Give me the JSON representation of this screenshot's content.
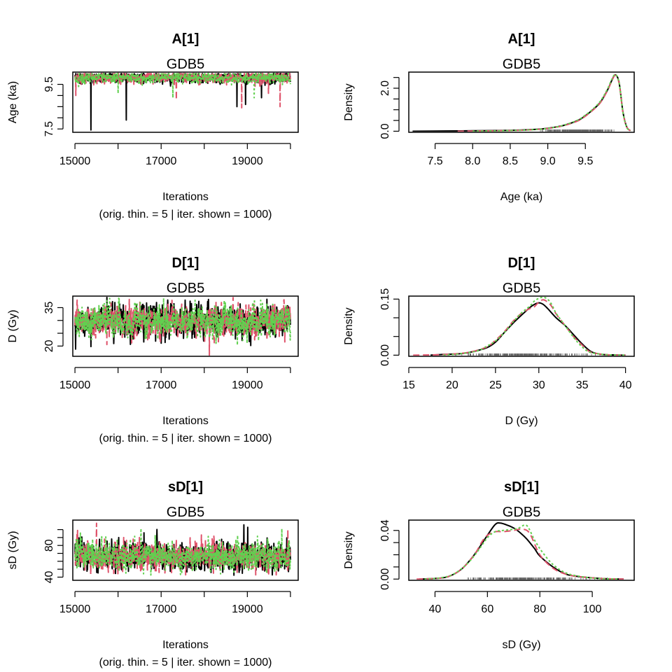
{
  "layout": {
    "rows": 3,
    "cols": 2
  },
  "colors": {
    "chain1": "#000000",
    "chain2": "#DF536B",
    "chain3": "#61D04F"
  },
  "chart_data": [
    {
      "type": "line",
      "kind": "trace",
      "title": "A[1]",
      "subtitle": "GDB5",
      "xlabel": "Iterations",
      "xlabel2": "(orig. thin. = 5 | iter. shown = 1000)",
      "ylabel": "Age (ka)",
      "xlim": [
        14950,
        20180
      ],
      "ylim": [
        7.35,
        10.05
      ],
      "x_ticks": [
        15000,
        16000,
        17000,
        18000,
        19000,
        20000
      ],
      "x_tick_labels": [
        "15000",
        "",
        "17000",
        "",
        "19000",
        ""
      ],
      "y_ticks": [
        7.5,
        8.0,
        8.5,
        9.0,
        9.5
      ],
      "y_tick_labels": [
        "7.5",
        "",
        "",
        "",
        "9.5"
      ],
      "trace": {
        "center": 9.8,
        "spread": 0.12,
        "upper_bound": 9.99,
        "band_low": 9.3
      },
      "series": [
        {
          "name": "chain 1",
          "x_range": [
            15000,
            20000
          ],
          "spikes": [
            [
              15370,
              7.45
            ],
            [
              16190,
              7.9
            ],
            [
              18760,
              8.5
            ],
            [
              18960,
              8.6
            ],
            [
              19330,
              8.9
            ]
          ]
        },
        {
          "name": "chain 2",
          "x_range": [
            15000,
            20000
          ],
          "spikes": [
            [
              15020,
              9.0
            ],
            [
              17350,
              8.8
            ],
            [
              18870,
              8.45
            ],
            [
              19490,
              9.1
            ],
            [
              19760,
              8.5
            ]
          ]
        },
        {
          "name": "chain 3",
          "x_range": [
            15000,
            20000
          ],
          "spikes": [
            [
              16000,
              9.1
            ],
            [
              17270,
              8.9
            ],
            [
              19160,
              8.9
            ]
          ]
        }
      ]
    },
    {
      "type": "line",
      "kind": "density",
      "title": "A[1]",
      "subtitle": "GDB5",
      "xlabel": "Age (ka)",
      "ylabel": "Density",
      "xlim": [
        7.15,
        10.15
      ],
      "ylim": [
        -0.05,
        2.75
      ],
      "x_ticks": [
        7.5,
        8.0,
        8.5,
        9.0,
        9.5
      ],
      "x_tick_labels": [
        "7.5",
        "8.0",
        "8.5",
        "9.0",
        "9.5"
      ],
      "y_ticks": [
        0.0,
        0.5,
        1.0,
        1.5,
        2.0,
        2.5
      ],
      "y_tick_labels": [
        "0.0",
        "",
        "",
        "",
        "2.0",
        ""
      ],
      "rug_range": [
        8.8,
        9.99
      ],
      "series": [
        {
          "name": "chain 1",
          "x": [
            7.2,
            7.5,
            8.0,
            8.5,
            8.8,
            9.0,
            9.2,
            9.4,
            9.5,
            9.6,
            9.7,
            9.8,
            9.85,
            9.9,
            9.95,
            10.0,
            10.05,
            10.1
          ],
          "y": [
            0.0,
            0.01,
            0.02,
            0.04,
            0.08,
            0.14,
            0.26,
            0.5,
            0.72,
            1.0,
            1.35,
            1.95,
            2.35,
            2.62,
            2.25,
            0.9,
            0.2,
            0.02
          ]
        },
        {
          "name": "chain 2",
          "x": [
            7.8,
            8.0,
            8.5,
            8.8,
            9.0,
            9.2,
            9.4,
            9.5,
            9.6,
            9.7,
            9.8,
            9.85,
            9.9,
            9.95,
            10.0,
            10.05,
            10.1
          ],
          "y": [
            0.0,
            0.01,
            0.03,
            0.07,
            0.13,
            0.25,
            0.48,
            0.7,
            0.98,
            1.33,
            1.93,
            2.33,
            2.6,
            2.22,
            0.88,
            0.2,
            0.02
          ]
        },
        {
          "name": "chain 3",
          "x": [
            8.0,
            8.5,
            8.8,
            9.0,
            9.2,
            9.4,
            9.5,
            9.6,
            9.7,
            9.8,
            9.85,
            9.9,
            9.95,
            10.0,
            10.05,
            10.1
          ],
          "y": [
            0.0,
            0.03,
            0.07,
            0.13,
            0.27,
            0.52,
            0.75,
            1.03,
            1.4,
            2.0,
            2.4,
            2.64,
            2.24,
            0.88,
            0.18,
            0.02
          ]
        }
      ]
    },
    {
      "type": "line",
      "kind": "trace",
      "title": "D[1]",
      "subtitle": "GDB5",
      "xlabel": "Iterations",
      "xlabel2": "(orig. thin. = 5 | iter. shown = 1000)",
      "ylabel": "D (Gy)",
      "xlim": [
        14950,
        20180
      ],
      "ylim": [
        16,
        39.5
      ],
      "x_ticks": [
        15000,
        16000,
        17000,
        18000,
        19000,
        20000
      ],
      "x_tick_labels": [
        "15000",
        "",
        "17000",
        "",
        "19000",
        ""
      ],
      "y_ticks": [
        20,
        25,
        30,
        35
      ],
      "y_tick_labels": [
        "20",
        "",
        "",
        "35"
      ],
      "trace": {
        "center": 29.8,
        "spread": 2.8,
        "upper_bound": 39,
        "band_low": 17
      },
      "series": [
        {
          "name": "chain 1",
          "x_range": [
            15000,
            20000
          ],
          "spikes": [
            [
              15370,
              19.8
            ],
            [
              18100,
              38.2
            ]
          ]
        },
        {
          "name": "chain 2",
          "x_range": [
            15000,
            20000
          ],
          "spikes": [
            [
              18120,
              16.2
            ],
            [
              18400,
              37.0
            ]
          ]
        },
        {
          "name": "chain 3",
          "x_range": [
            15000,
            20000
          ],
          "spikes": [
            [
              16400,
              36.5
            ]
          ]
        }
      ]
    },
    {
      "type": "line",
      "kind": "density",
      "title": "D[1]",
      "subtitle": "GDB5",
      "xlabel": "D (Gy)",
      "ylabel": "Density",
      "xlim": [
        15,
        41
      ],
      "ylim": [
        -0.003,
        0.158
      ],
      "x_ticks": [
        15,
        20,
        25,
        30,
        35,
        40
      ],
      "x_tick_labels": [
        "15",
        "20",
        "25",
        "30",
        "35",
        "40"
      ],
      "y_ticks": [
        0.0,
        0.05,
        0.1,
        0.15
      ],
      "y_tick_labels": [
        "0.00",
        "",
        "",
        "0.15"
      ],
      "rug_range": [
        17,
        39
      ],
      "series": [
        {
          "name": "chain 1",
          "x": [
            17.5,
            19,
            21,
            22.5,
            24,
            25,
            26,
            27,
            28,
            29,
            29.5,
            30,
            30.5,
            31,
            32,
            33,
            34,
            35,
            36,
            37,
            38,
            40
          ],
          "y": [
            0.0,
            0.002,
            0.004,
            0.01,
            0.02,
            0.035,
            0.06,
            0.085,
            0.107,
            0.128,
            0.136,
            0.14,
            0.136,
            0.125,
            0.1,
            0.08,
            0.055,
            0.03,
            0.01,
            0.003,
            0.001,
            0.0
          ]
        },
        {
          "name": "chain 2",
          "x": [
            15.5,
            18,
            20,
            22,
            24,
            25,
            26,
            27,
            28,
            29,
            29.5,
            30,
            30.5,
            31,
            31.5,
            32,
            33,
            34,
            35,
            36,
            38,
            40
          ],
          "y": [
            0.0,
            0.001,
            0.003,
            0.008,
            0.022,
            0.04,
            0.062,
            0.09,
            0.112,
            0.125,
            0.13,
            0.142,
            0.148,
            0.142,
            0.13,
            0.11,
            0.08,
            0.05,
            0.027,
            0.008,
            0.001,
            0.0
          ]
        },
        {
          "name": "chain 3",
          "x": [
            19,
            21,
            23,
            24,
            25,
            26,
            27,
            28,
            29,
            29.5,
            30,
            30.5,
            31,
            31.5,
            32,
            33,
            34,
            35,
            36,
            38,
            40
          ],
          "y": [
            0.0,
            0.004,
            0.012,
            0.024,
            0.038,
            0.06,
            0.088,
            0.113,
            0.132,
            0.145,
            0.152,
            0.155,
            0.15,
            0.135,
            0.112,
            0.08,
            0.048,
            0.022,
            0.007,
            0.001,
            0.0
          ]
        }
      ]
    },
    {
      "type": "line",
      "kind": "trace",
      "title": "sD[1]",
      "subtitle": "GDB5",
      "xlabel": "Iterations",
      "xlabel2": "(orig. thin. = 5 | iter. shown = 1000)",
      "ylabel": "sD (Gy)",
      "xlim": [
        14950,
        20180
      ],
      "ylim": [
        36,
        112
      ],
      "x_ticks": [
        15000,
        16000,
        17000,
        18000,
        19000,
        20000
      ],
      "x_tick_labels": [
        "15000",
        "",
        "17000",
        "",
        "19000",
        ""
      ],
      "y_ticks": [
        40,
        50,
        60,
        70,
        80,
        90,
        100
      ],
      "y_tick_labels": [
        "40",
        "",
        "",
        "",
        "80",
        "",
        ""
      ],
      "trace": {
        "center": 66,
        "spread": 8.5,
        "upper_bound": 110,
        "band_low": 42
      },
      "series": [
        {
          "name": "chain 1",
          "x_range": [
            15000,
            20000
          ],
          "spikes": [
            [
              18920,
              106
            ],
            [
              19010,
              103
            ]
          ]
        },
        {
          "name": "chain 2",
          "x_range": [
            15000,
            20000
          ],
          "spikes": [
            [
              15500,
              108
            ],
            [
              15060,
              99
            ],
            [
              19940,
              100
            ]
          ]
        },
        {
          "name": "chain 3",
          "x_range": [
            15000,
            20000
          ],
          "spikes": [
            [
              19800,
              101
            ]
          ]
        }
      ]
    },
    {
      "type": "line",
      "kind": "density",
      "title": "sD[1]",
      "subtitle": "GDB5",
      "xlabel": "sD (Gy)",
      "ylabel": "Density",
      "xlim": [
        30,
        116
      ],
      "ylim": [
        -0.001,
        0.0485
      ],
      "x_ticks": [
        40,
        60,
        80,
        100
      ],
      "x_tick_labels": [
        "40",
        "60",
        "80",
        "100"
      ],
      "y_ticks": [
        0.0,
        0.01,
        0.02,
        0.03,
        0.04
      ],
      "y_tick_labels": [
        "0.00",
        "",
        "",
        "",
        "0.04"
      ],
      "rug_range": [
        40,
        110
      ],
      "series": [
        {
          "name": "chain 1",
          "x": [
            34,
            40,
            45,
            50,
            55,
            60,
            63,
            65,
            68,
            70,
            72,
            75,
            78,
            80,
            85,
            90,
            95,
            100,
            105,
            112
          ],
          "y": [
            0.0,
            0.0005,
            0.002,
            0.008,
            0.02,
            0.036,
            0.045,
            0.046,
            0.044,
            0.042,
            0.039,
            0.033,
            0.025,
            0.019,
            0.01,
            0.004,
            0.002,
            0.001,
            0.0003,
            0.0
          ]
        },
        {
          "name": "chain 2",
          "x": [
            33,
            40,
            45,
            50,
            55,
            58,
            60,
            63,
            66,
            70,
            73,
            76,
            80,
            85,
            90,
            95,
            100,
            105,
            112
          ],
          "y": [
            0.0,
            0.0005,
            0.002,
            0.008,
            0.02,
            0.031,
            0.036,
            0.039,
            0.039,
            0.04,
            0.041,
            0.038,
            0.02,
            0.009,
            0.004,
            0.002,
            0.001,
            0.0003,
            0.0
          ]
        },
        {
          "name": "chain 3",
          "x": [
            36,
            42,
            47,
            52,
            56,
            60,
            63,
            66,
            70,
            72,
            75,
            78,
            81,
            85,
            90,
            96,
            102,
            110
          ],
          "y": [
            0.0,
            0.001,
            0.004,
            0.012,
            0.022,
            0.034,
            0.039,
            0.04,
            0.041,
            0.042,
            0.044,
            0.032,
            0.022,
            0.012,
            0.005,
            0.002,
            0.0005,
            0.0
          ]
        }
      ]
    }
  ]
}
